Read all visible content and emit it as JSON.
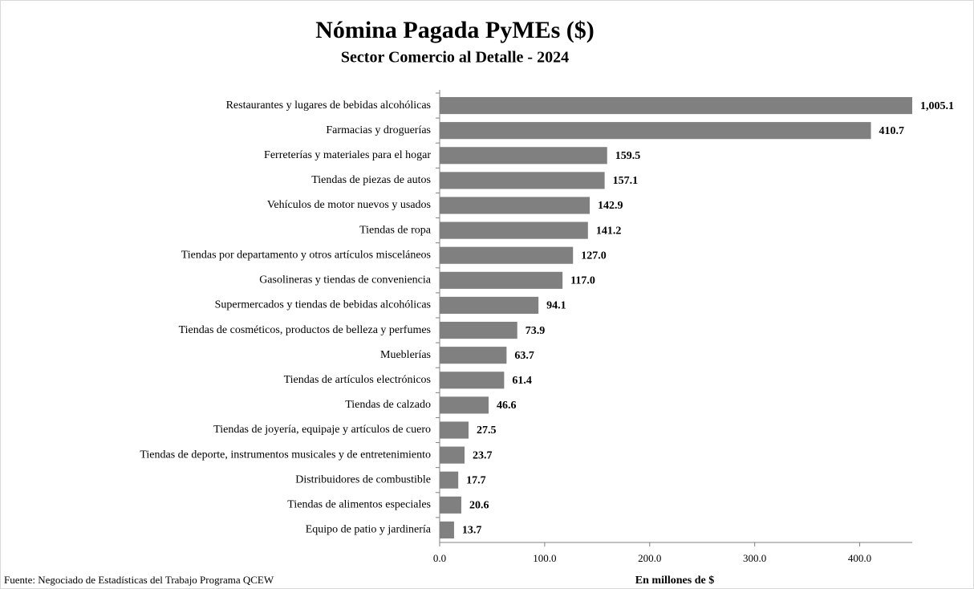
{
  "chart_data": {
    "type": "bar",
    "orientation": "horizontal",
    "title": "Nómina Pagada PyMEs ($)",
    "subtitle": "Sector Comercio al Detalle - 2024",
    "x_label": "En millones de $",
    "source": "Fuente: Negociado de Estadísticas del Trabajo Programa QCEW",
    "categories": [
      "Restaurantes y lugares de bebidas alcohólicas",
      "Farmacias y droguerías",
      "Ferreterías y materiales para el hogar",
      "Tiendas de piezas de autos",
      "Vehículos de motor nuevos y usados",
      "Tiendas de ropa",
      "Tiendas por departamento y otros artículos misceláneos",
      "Gasolineras y tiendas de conveniencia",
      "Supermercados y tiendas de bebidas alcohólicas",
      "Tiendas de cosméticos, productos de belleza y perfumes",
      "Mueblerías",
      "Tiendas de artículos electrónicos",
      "Tiendas de calzado",
      "Tiendas de joyería, equipaje y artículos de cuero",
      "Tiendas de deporte, instrumentos musicales y de entretenimiento",
      "Distribuidores de combustible",
      "Tiendas de alimentos especiales",
      "Equipo de patio y jardinería"
    ],
    "values": [
      1005.1,
      410.7,
      159.5,
      157.1,
      142.9,
      141.2,
      127.0,
      117.0,
      94.1,
      73.9,
      63.7,
      61.4,
      46.6,
      27.5,
      23.7,
      17.7,
      20.6,
      13.7
    ],
    "value_labels": [
      "1,005.1",
      "410.7",
      "159.5",
      "157.1",
      "142.9",
      "141.2",
      "127.0",
      "117.0",
      "94.1",
      "73.9",
      "63.7",
      "61.4",
      "46.6",
      "27.5",
      "23.7",
      "17.7",
      "20.6",
      "13.7"
    ],
    "color": "#808080",
    "xlim": [
      0,
      450
    ],
    "xticks": [
      {
        "value": 0,
        "label": "0.0"
      },
      {
        "value": 100,
        "label": "100.0"
      },
      {
        "value": 200,
        "label": "200.0"
      },
      {
        "value": 300,
        "label": "300.0"
      },
      {
        "value": 400,
        "label": "400.0"
      }
    ],
    "grid": false
  }
}
